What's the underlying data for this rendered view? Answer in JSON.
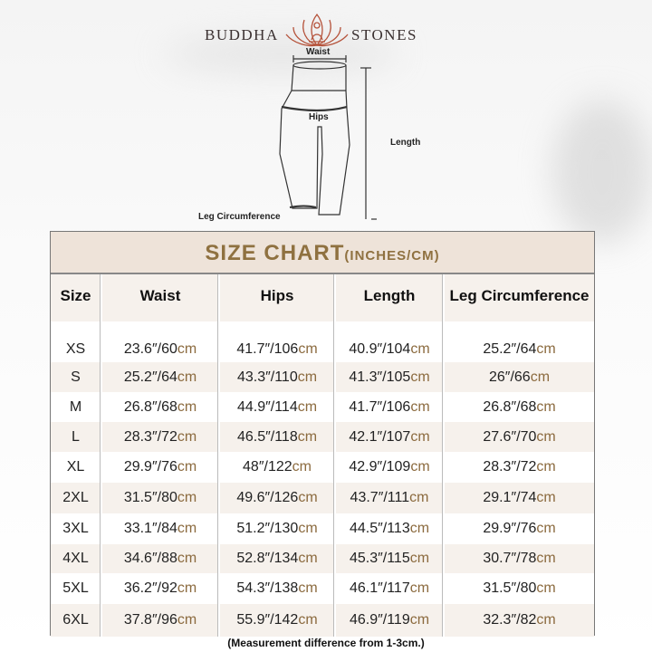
{
  "brand": {
    "left": "BUDDHA",
    "right": "STONES",
    "logo": "lotus-meditation-icon",
    "logo_color": "#b5523a"
  },
  "diagram": {
    "waist": "Waist",
    "hips": "Hips",
    "length": "Length",
    "leg": "Leg Circumference"
  },
  "table": {
    "title": "SIZE CHART",
    "title_units": "(INCHES/CM)",
    "title_color": "#8f7140",
    "unit_color": "#8b6a3e",
    "headers": [
      "Size",
      "Waist",
      "Hips",
      "Length",
      "Leg Circumference"
    ],
    "unit": "cm",
    "rows": [
      {
        "size": "XS",
        "cells": [
          "23.6″/60",
          "41.7″/106",
          "40.9″/104",
          "25.2″/64"
        ]
      },
      {
        "size": "S",
        "cells": [
          "25.2″/64",
          "43.3″/110",
          "41.3″/105",
          "26″/66"
        ]
      },
      {
        "size": "M",
        "cells": [
          "26.8″/68",
          "44.9″/114",
          "41.7″/106",
          "26.8″/68"
        ]
      },
      {
        "size": "L",
        "cells": [
          "28.3″/72",
          "46.5″/118",
          "42.1″/107",
          "27.6″/70"
        ]
      },
      {
        "size": "XL",
        "cells": [
          "29.9″/76",
          "48″/122",
          "42.9″/109",
          "28.3″/72"
        ]
      },
      {
        "size": "2XL",
        "cells": [
          "31.5″/80",
          "49.6″/126",
          "43.7″/111",
          "29.1″/74"
        ]
      },
      {
        "size": "3XL",
        "cells": [
          "33.1″/84",
          "51.2″/130",
          "44.5″/113",
          "29.9″/76"
        ]
      },
      {
        "size": "4XL",
        "cells": [
          "34.6″/88",
          "52.8″/134",
          "45.3″/115",
          "30.7″/78"
        ]
      },
      {
        "size": "5XL",
        "cells": [
          "36.2″/92",
          "54.3″/138",
          "46.1″/117",
          "31.5″/80"
        ]
      },
      {
        "size": "6XL",
        "cells": [
          "37.8″/96",
          "55.9″/142",
          "46.9″/119",
          "32.3″/82"
        ]
      }
    ]
  },
  "note": "(Measurement difference from 1-3cm.)"
}
